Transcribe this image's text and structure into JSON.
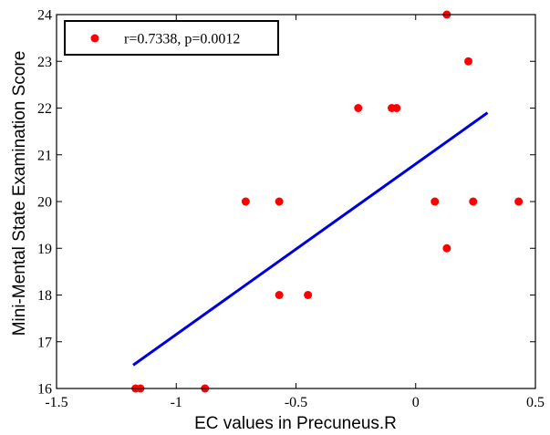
{
  "colors": {
    "points": "#ff0000",
    "fit_line": "#0000dd",
    "axes": "#000000"
  },
  "chart_data": {
    "type": "scatter",
    "title": "",
    "xlabel": "EC values in Precuneus.R",
    "ylabel": "Mini-Mental State Examination Score",
    "xlim": [
      -1.5,
      0.5
    ],
    "ylim": [
      16,
      24
    ],
    "x_ticks": [
      -1.5,
      -1,
      -0.5,
      0,
      0.5
    ],
    "x_tick_labels": [
      "-1.5",
      "-1",
      "-0.5",
      "0",
      "0.5"
    ],
    "y_ticks": [
      16,
      17,
      18,
      19,
      20,
      21,
      22,
      23,
      24
    ],
    "y_tick_labels": [
      "16",
      "17",
      "18",
      "19",
      "20",
      "21",
      "22",
      "23",
      "24"
    ],
    "grid": false,
    "legend_position": "top-left",
    "legend": [
      "r=0.7338, p=0.0012"
    ],
    "series": [
      {
        "name": "r=0.7338, p=0.0012",
        "type": "scatter",
        "x": [
          -1.17,
          -1.15,
          -0.88,
          -0.71,
          -0.57,
          -0.57,
          -0.45,
          -0.24,
          -0.1,
          -0.08,
          0.08,
          0.13,
          0.13,
          0.22,
          0.24,
          0.43
        ],
        "y": [
          16,
          16,
          16,
          20,
          20,
          18,
          18,
          22,
          22,
          22,
          20,
          24,
          19,
          23,
          20,
          20
        ]
      },
      {
        "type": "line",
        "x": [
          -1.18,
          0.3
        ],
        "y": [
          16.5,
          21.9
        ]
      }
    ]
  }
}
